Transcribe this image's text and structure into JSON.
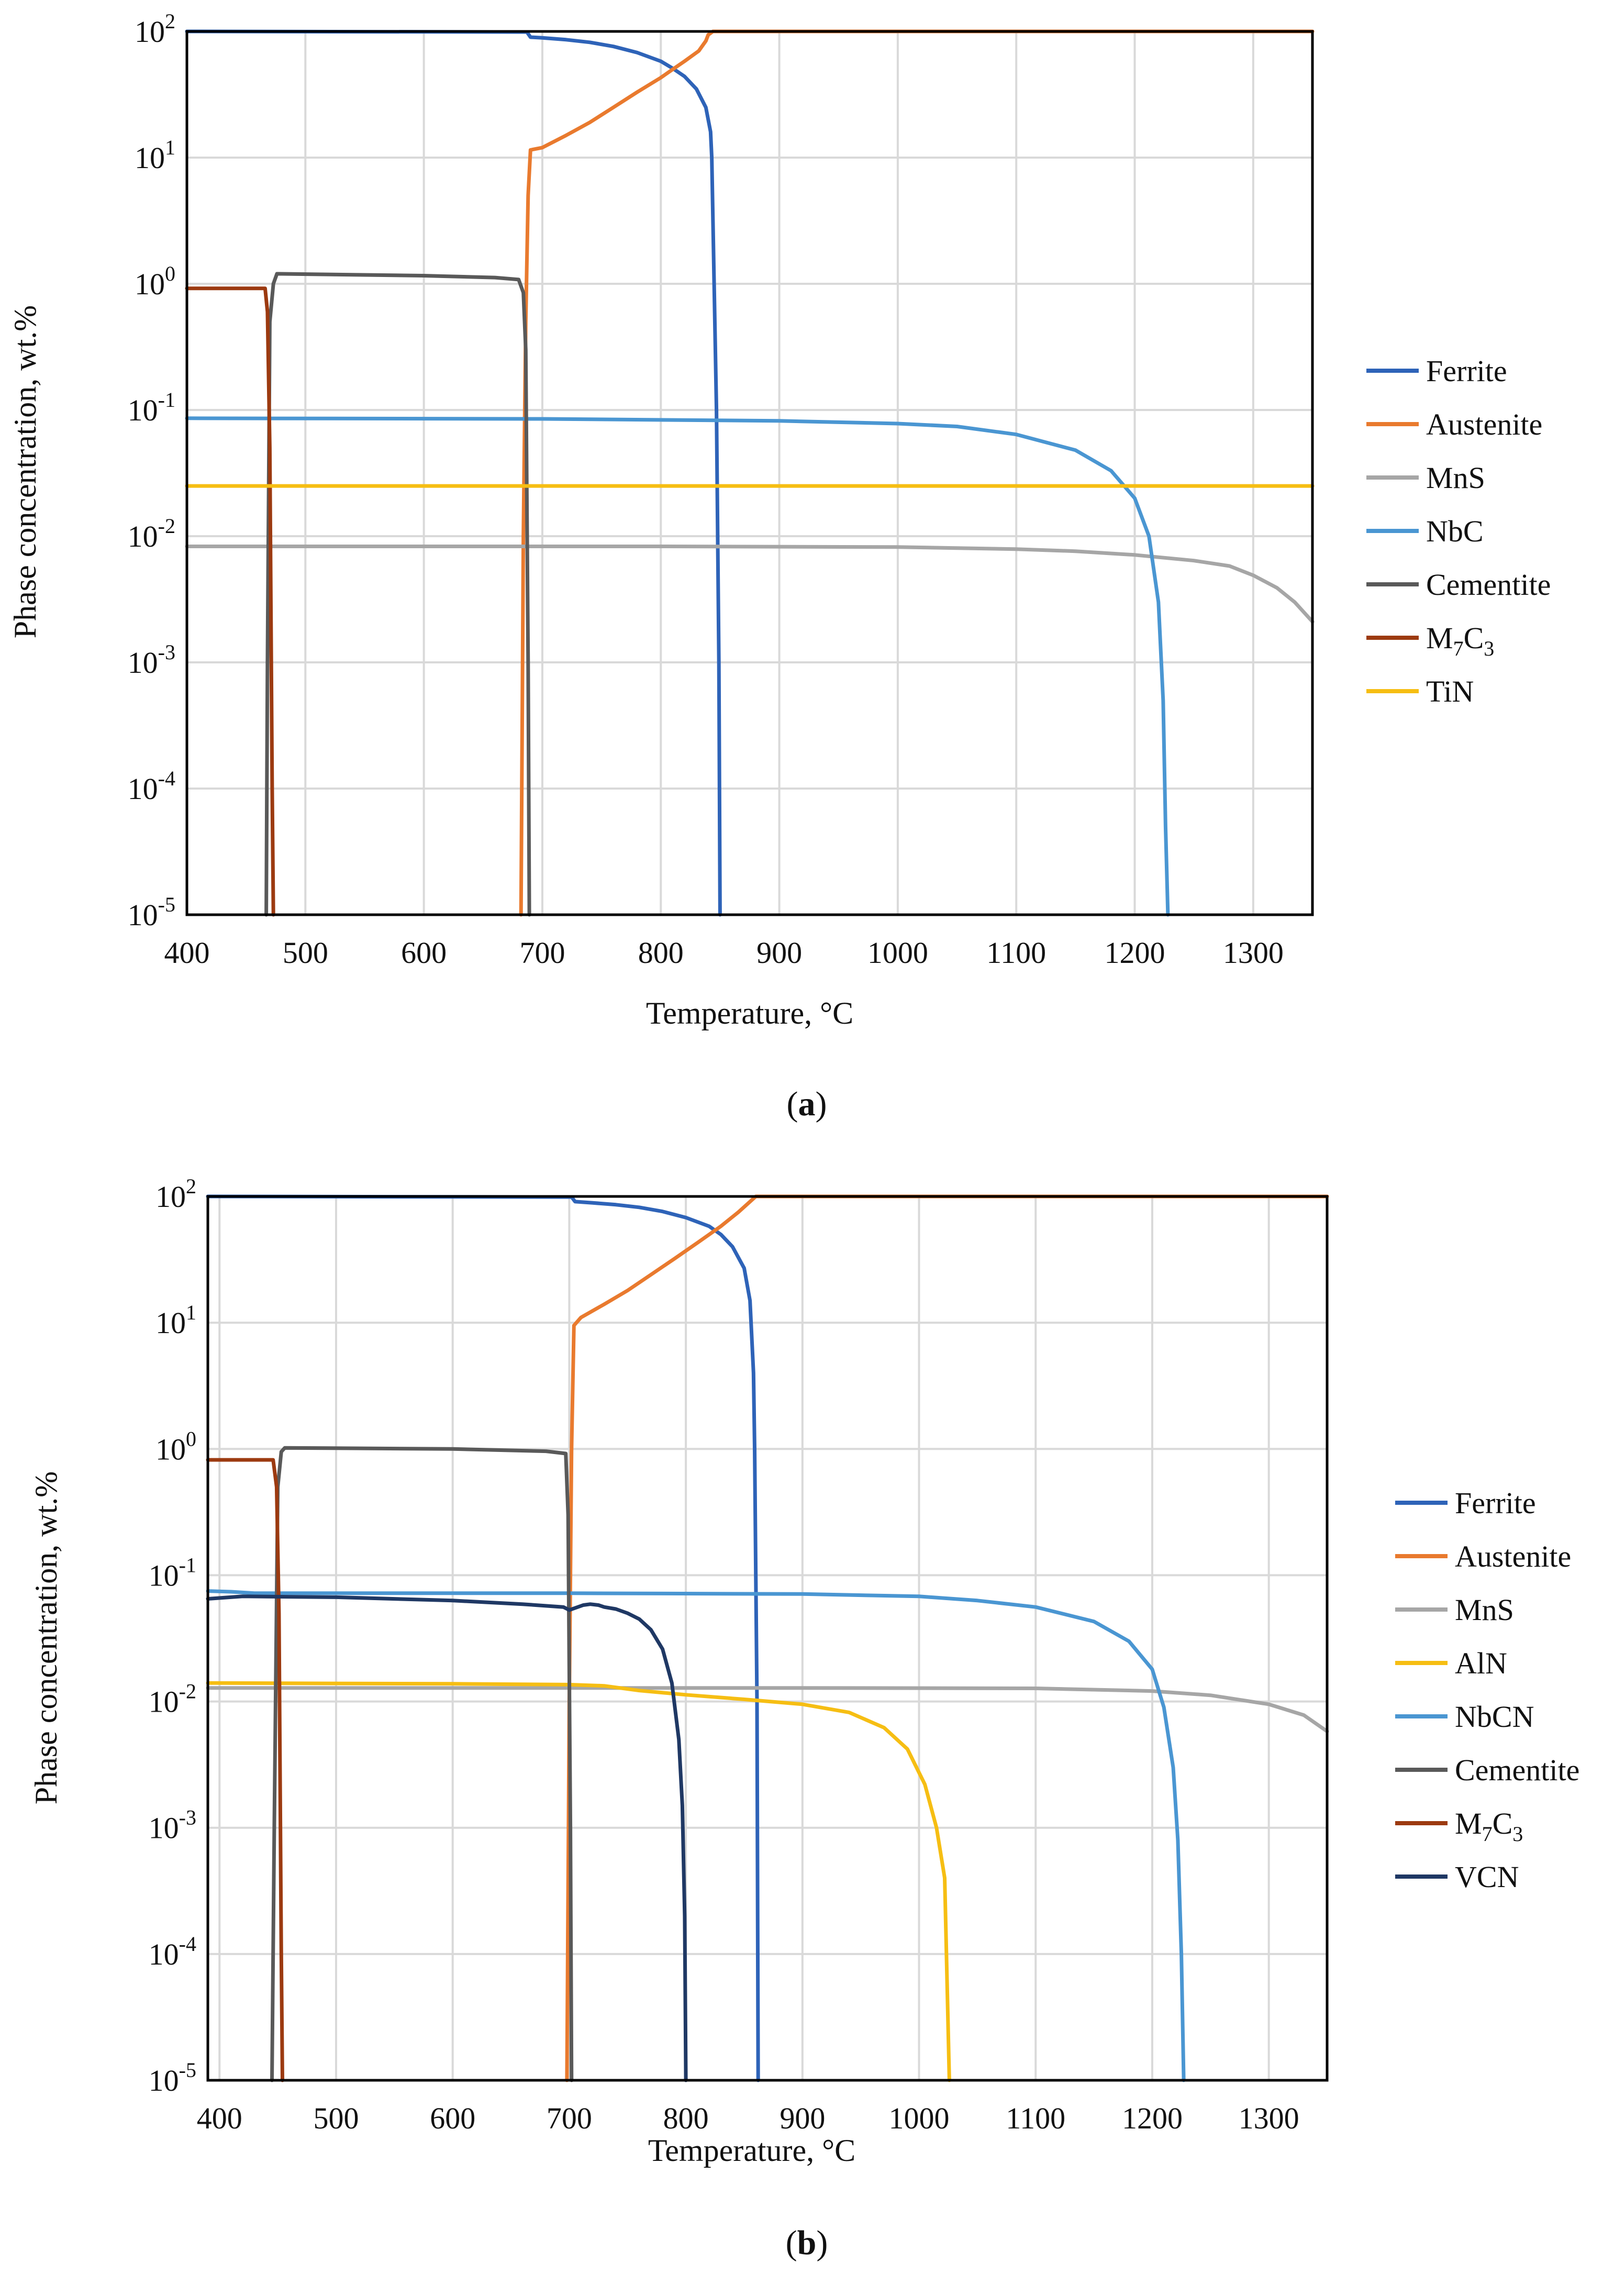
{
  "chart_data": [
    {
      "type": "line",
      "panel_label": "a",
      "xlabel": "Temperature, °C",
      "ylabel": "Phase concentration, wt.%",
      "xlim": [
        400,
        1350
      ],
      "ylim_log10": [
        -5,
        2
      ],
      "x_ticks": [
        400,
        500,
        600,
        700,
        800,
        900,
        1000,
        1100,
        1200,
        1300
      ],
      "y_ticks": [
        {
          "base": "10",
          "exp": "2",
          "value": 100
        },
        {
          "base": "10",
          "exp": "1",
          "value": 10
        },
        {
          "base": "10",
          "exp": "0",
          "value": 1
        },
        {
          "base": "10",
          "exp": "-1",
          "value": 0.1
        },
        {
          "base": "10",
          "exp": "-2",
          "value": 0.01
        },
        {
          "base": "10",
          "exp": "-3",
          "value": 0.001
        },
        {
          "base": "10",
          "exp": "-4",
          "value": 0.0001
        },
        {
          "base": "10",
          "exp": "-5",
          "value": 1e-05
        }
      ],
      "grid": true,
      "legend_position": "right",
      "series": [
        {
          "name": "Ferrite",
          "label_parts": [
            {
              "t": "Ferrite"
            }
          ],
          "color": "#2e63b8",
          "points": [
            [
              400,
              100
            ],
            [
              687,
              99
            ],
            [
              690,
              90
            ],
            [
              700,
              89
            ],
            [
              720,
              86
            ],
            [
              740,
              82
            ],
            [
              760,
              76
            ],
            [
              780,
              68
            ],
            [
              800,
              58
            ],
            [
              810,
              51
            ],
            [
              820,
              44
            ],
            [
              830,
              35
            ],
            [
              838,
              25
            ],
            [
              842,
              16
            ],
            [
              843,
              10
            ],
            [
              845,
              1
            ],
            [
              847,
              0.1
            ],
            [
              848,
              0.01
            ],
            [
              849,
              0.001
            ],
            [
              850,
              1e-05
            ]
          ]
        },
        {
          "name": "Austenite",
          "label_parts": [
            {
              "t": "Austenite"
            }
          ],
          "color": "#e97a2e",
          "points": [
            [
              682,
              1e-05
            ],
            [
              684,
              0.01
            ],
            [
              686,
              0.5
            ],
            [
              688,
              5
            ],
            [
              690,
              11.5
            ],
            [
              700,
              12
            ],
            [
              720,
              15
            ],
            [
              740,
              19
            ],
            [
              760,
              25
            ],
            [
              780,
              33
            ],
            [
              800,
              43
            ],
            [
              810,
              50
            ],
            [
              820,
              58
            ],
            [
              832,
              70
            ],
            [
              838,
              84
            ],
            [
              840,
              94
            ],
            [
              844,
              100
            ],
            [
              1350,
              100
            ]
          ]
        },
        {
          "name": "MnS",
          "label_parts": [
            {
              "t": "MnS"
            }
          ],
          "color": "#a6a6a6",
          "points": [
            [
              400,
              0.0083
            ],
            [
              800,
              0.0083
            ],
            [
              1000,
              0.0082
            ],
            [
              1100,
              0.0079
            ],
            [
              1150,
              0.0076
            ],
            [
              1200,
              0.0071
            ],
            [
              1250,
              0.0064
            ],
            [
              1280,
              0.0058
            ],
            [
              1300,
              0.0049
            ],
            [
              1320,
              0.0039
            ],
            [
              1335,
              0.003
            ],
            [
              1350,
              0.0021
            ]
          ]
        },
        {
          "name": "NbC",
          "label_parts": [
            {
              "t": "NbC"
            }
          ],
          "color": "#4a96d2",
          "points": [
            [
              400,
              0.086
            ],
            [
              700,
              0.085
            ],
            [
              900,
              0.082
            ],
            [
              1000,
              0.078
            ],
            [
              1050,
              0.074
            ],
            [
              1100,
              0.064
            ],
            [
              1150,
              0.048
            ],
            [
              1180,
              0.033
            ],
            [
              1200,
              0.02
            ],
            [
              1212,
              0.01
            ],
            [
              1220,
              0.003
            ],
            [
              1224,
              0.0005
            ],
            [
              1226,
              5e-05
            ],
            [
              1228,
              1e-05
            ]
          ]
        },
        {
          "name": "Cementite",
          "label_parts": [
            {
              "t": "Cementite"
            }
          ],
          "color": "#595959",
          "points": [
            [
              467,
              1e-05
            ],
            [
              468,
              0.001
            ],
            [
              470,
              0.5
            ],
            [
              473,
              1
            ],
            [
              476,
              1.2
            ],
            [
              600,
              1.16
            ],
            [
              660,
              1.12
            ],
            [
              680,
              1.08
            ],
            [
              684,
              0.85
            ],
            [
              686,
              0.3
            ],
            [
              688,
              0.001
            ],
            [
              689,
              1e-05
            ]
          ]
        },
        {
          "name": "M7C3",
          "label_parts": [
            {
              "t": "M"
            },
            {
              "t": "7",
              "sub": true
            },
            {
              "t": "C"
            },
            {
              "t": "3",
              "sub": true
            }
          ],
          "color": "#9c3a10",
          "points": [
            [
              400,
              0.92
            ],
            [
              466,
              0.92
            ],
            [
              468,
              0.6
            ],
            [
              470,
              0.05
            ],
            [
              472,
              0.0001
            ],
            [
              473,
              1e-05
            ]
          ]
        },
        {
          "name": "TiN",
          "label_parts": [
            {
              "t": "TiN"
            }
          ],
          "color": "#f6be13",
          "points": [
            [
              400,
              0.025
            ],
            [
              1350,
              0.025
            ]
          ]
        }
      ]
    },
    {
      "type": "line",
      "panel_label": "b",
      "xlabel": "Temperature, °C",
      "ylabel": "Phase concentration, wt.%",
      "xlim": [
        390,
        1350
      ],
      "ylim_log10": [
        -5,
        2
      ],
      "x_ticks": [
        400,
        500,
        600,
        700,
        800,
        900,
        1000,
        1100,
        1200,
        1300
      ],
      "y_ticks": [
        {
          "base": "10",
          "exp": "2",
          "value": 100
        },
        {
          "base": "10",
          "exp": "1",
          "value": 10
        },
        {
          "base": "10",
          "exp": "0",
          "value": 1
        },
        {
          "base": "10",
          "exp": "-1",
          "value": 0.1
        },
        {
          "base": "10",
          "exp": "-2",
          "value": 0.01
        },
        {
          "base": "10",
          "exp": "-3",
          "value": 0.001
        },
        {
          "base": "10",
          "exp": "-4",
          "value": 0.0001
        },
        {
          "base": "10",
          "exp": "-5",
          "value": 1e-05
        }
      ],
      "grid": true,
      "legend_position": "right",
      "series": [
        {
          "name": "Ferrite",
          "label_parts": [
            {
              "t": "Ferrite"
            }
          ],
          "color": "#2e63b8",
          "points": [
            [
              390,
              100
            ],
            [
              702,
              99
            ],
            [
              705,
              91
            ],
            [
              720,
              89
            ],
            [
              740,
              86
            ],
            [
              760,
              82
            ],
            [
              780,
              76
            ],
            [
              800,
              68
            ],
            [
              820,
              58
            ],
            [
              830,
              50
            ],
            [
              840,
              40
            ],
            [
              850,
              27
            ],
            [
              855,
              15
            ],
            [
              858,
              4
            ],
            [
              859,
              1
            ],
            [
              860,
              0.1
            ],
            [
              861,
              0.01
            ],
            [
              862,
              1e-05
            ]
          ]
        },
        {
          "name": "Austenite",
          "label_parts": [
            {
              "t": "Austenite"
            }
          ],
          "color": "#e97a2e",
          "points": [
            [
              698,
              1e-05
            ],
            [
              700,
              0.01
            ],
            [
              702,
              1
            ],
            [
              704,
              9.5
            ],
            [
              710,
              11
            ],
            [
              730,
              14
            ],
            [
              750,
              18
            ],
            [
              770,
              24
            ],
            [
              790,
              32
            ],
            [
              810,
              43
            ],
            [
              830,
              58
            ],
            [
              845,
              75
            ],
            [
              860,
              100
            ],
            [
              1350,
              100
            ]
          ]
        },
        {
          "name": "MnS",
          "label_parts": [
            {
              "t": "MnS"
            }
          ],
          "color": "#a6a6a6",
          "points": [
            [
              390,
              0.0128
            ],
            [
              900,
              0.0128
            ],
            [
              1100,
              0.0127
            ],
            [
              1200,
              0.0121
            ],
            [
              1250,
              0.0112
            ],
            [
              1300,
              0.0095
            ],
            [
              1330,
              0.0078
            ],
            [
              1350,
              0.0058
            ]
          ]
        },
        {
          "name": "AlN",
          "label_parts": [
            {
              "t": "AlN"
            }
          ],
          "color": "#f6be13",
          "points": [
            [
              390,
              0.014
            ],
            [
              600,
              0.0138
            ],
            [
              700,
              0.0136
            ],
            [
              730,
              0.0133
            ],
            [
              760,
              0.0122
            ],
            [
              800,
              0.0113
            ],
            [
              850,
              0.0104
            ],
            [
              900,
              0.0095
            ],
            [
              940,
              0.0082
            ],
            [
              970,
              0.0062
            ],
            [
              990,
              0.0042
            ],
            [
              1005,
              0.0022
            ],
            [
              1015,
              0.001
            ],
            [
              1022,
              0.0004
            ],
            [
              1026,
              1e-05
            ]
          ]
        },
        {
          "name": "NbCN",
          "label_parts": [
            {
              "t": "NbCN"
            }
          ],
          "color": "#4a96d2",
          "points": [
            [
              390,
              0.075
            ],
            [
              410,
              0.074
            ],
            [
              430,
              0.072
            ],
            [
              700,
              0.072
            ],
            [
              900,
              0.071
            ],
            [
              1000,
              0.068
            ],
            [
              1050,
              0.063
            ],
            [
              1100,
              0.056
            ],
            [
              1150,
              0.043
            ],
            [
              1180,
              0.03
            ],
            [
              1200,
              0.018
            ],
            [
              1210,
              0.009
            ],
            [
              1218,
              0.003
            ],
            [
              1222,
              0.0008
            ],
            [
              1225,
              0.0001
            ],
            [
              1227,
              1e-05
            ]
          ]
        },
        {
          "name": "Cementite",
          "label_parts": [
            {
              "t": "Cementite"
            }
          ],
          "color": "#595959",
          "points": [
            [
              445,
              1e-05
            ],
            [
              447,
              0.001
            ],
            [
              450,
              0.5
            ],
            [
              453,
              0.95
            ],
            [
              456,
              1.02
            ],
            [
              600,
              1.0
            ],
            [
              680,
              0.96
            ],
            [
              697,
              0.92
            ],
            [
              699,
              0.3
            ],
            [
              701,
              0.001
            ],
            [
              702,
              1e-05
            ]
          ]
        },
        {
          "name": "M7C3",
          "label_parts": [
            {
              "t": "M"
            },
            {
              "t": "7",
              "sub": true
            },
            {
              "t": "C"
            },
            {
              "t": "3",
              "sub": true
            }
          ],
          "color": "#9c3a10",
          "points": [
            [
              390,
              0.82
            ],
            [
              446,
              0.82
            ],
            [
              449,
              0.5
            ],
            [
              451,
              0.05
            ],
            [
              453,
              0.0001
            ],
            [
              454,
              1e-05
            ]
          ]
        },
        {
          "name": "VCN",
          "label_parts": [
            {
              "t": "VCN"
            }
          ],
          "color": "#1f3864",
          "points": [
            [
              390,
              0.065
            ],
            [
              420,
              0.068
            ],
            [
              500,
              0.067
            ],
            [
              600,
              0.063
            ],
            [
              660,
              0.059
            ],
            [
              695,
              0.056
            ],
            [
              700,
              0.053
            ],
            [
              712,
              0.058
            ],
            [
              718,
              0.059
            ],
            [
              725,
              0.058
            ],
            [
              730,
              0.056
            ],
            [
              740,
              0.054
            ],
            [
              750,
              0.05
            ],
            [
              760,
              0.045
            ],
            [
              770,
              0.037
            ],
            [
              780,
              0.026
            ],
            [
              788,
              0.014
            ],
            [
              794,
              0.005
            ],
            [
              797,
              0.0015
            ],
            [
              799,
              0.0002
            ],
            [
              800,
              1e-05
            ]
          ]
        }
      ]
    }
  ]
}
